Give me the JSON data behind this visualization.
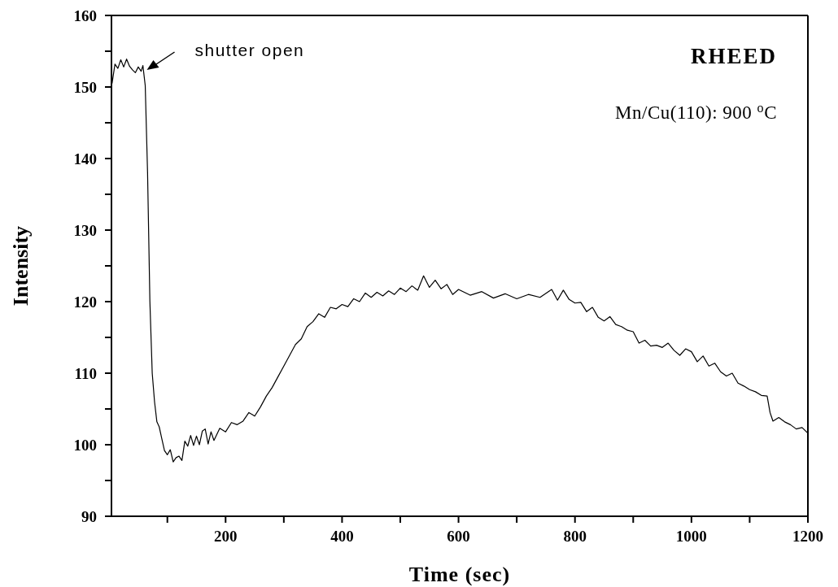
{
  "chart_data": {
    "type": "line",
    "xlabel": "Time (sec)",
    "ylabel": "Intensity",
    "annotations": [
      {
        "text": "shutter open",
        "x": 62,
        "y": 152.5
      },
      "RHEED",
      "Mn/Cu(110): 900 $^{o}$C"
    ],
    "x": [
      5,
      10,
      15,
      20,
      25,
      30,
      35,
      40,
      45,
      50,
      55,
      58,
      62,
      66,
      70,
      74,
      78,
      82,
      86,
      90,
      95,
      100,
      105,
      110,
      115,
      120,
      125,
      130,
      135,
      140,
      145,
      150,
      155,
      160,
      165,
      170,
      175,
      180,
      190,
      200,
      210,
      220,
      230,
      240,
      250,
      260,
      270,
      280,
      290,
      300,
      310,
      320,
      330,
      340,
      350,
      360,
      370,
      380,
      390,
      400,
      410,
      420,
      430,
      440,
      450,
      460,
      470,
      480,
      490,
      500,
      510,
      520,
      530,
      540,
      550,
      560,
      570,
      580,
      590,
      600,
      620,
      640,
      660,
      680,
      700,
      720,
      740,
      760,
      770,
      780,
      790,
      800,
      810,
      820,
      830,
      840,
      850,
      860,
      870,
      880,
      890,
      900,
      910,
      920,
      930,
      940,
      950,
      960,
      970,
      980,
      990,
      1000,
      1010,
      1020,
      1030,
      1040,
      1050,
      1060,
      1070,
      1080,
      1090,
      1100,
      1110,
      1120,
      1130,
      1135,
      1140,
      1150,
      1160,
      1170,
      1180,
      1190,
      1200
    ],
    "series": [
      {
        "color": "#000000",
        "values": [
          150.5,
          153.2,
          152.6,
          153.8,
          152.8,
          153.9,
          152.9,
          152.4,
          152.0,
          152.8,
          152.2,
          153.0,
          150.2,
          138,
          120,
          110,
          106,
          103.2,
          102.5,
          101,
          99.2,
          98.6,
          99.3,
          97.6,
          98.2,
          98.4,
          97.8,
          100.5,
          99.8,
          101.3,
          99.9,
          101.2,
          100.0,
          101.9,
          102.2,
          100.1,
          101.8,
          100.6,
          102.3,
          101.8,
          103.1,
          102.8,
          103.3,
          104.5,
          104.0,
          105.3,
          106.8,
          108.0,
          109.5,
          111.0,
          112.5,
          114.0,
          114.8,
          116.5,
          117.2,
          118.3,
          117.8,
          119.2,
          119.0,
          119.6,
          119.3,
          120.4,
          120.0,
          121.2,
          120.6,
          121.3,
          120.8,
          121.5,
          121.0,
          121.9,
          121.4,
          122.2,
          121.6,
          123.6,
          122.0,
          123.0,
          121.8,
          122.4,
          121.0,
          121.7,
          120.9,
          121.4,
          120.5,
          121.1,
          120.4,
          121.0,
          120.6,
          121.7,
          120.2,
          121.6,
          120.3,
          119.8,
          119.9,
          118.6,
          119.2,
          117.8,
          117.3,
          117.9,
          116.8,
          116.5,
          116.0,
          115.8,
          114.2,
          114.6,
          113.8,
          113.9,
          113.6,
          114.2,
          113.2,
          112.5,
          113.4,
          113.0,
          111.6,
          112.4,
          111.0,
          111.4,
          110.2,
          109.6,
          110.0,
          108.6,
          108.2,
          107.7,
          107.4,
          106.9,
          106.8,
          104.5,
          103.3,
          103.8,
          103.2,
          102.8,
          102.2,
          102.4,
          101.6
        ]
      }
    ],
    "xlim": [
      4,
      1200
    ],
    "xticks": [
      {
        "value": 100,
        "label": null
      },
      200,
      {
        "value": 300,
        "label": null
      },
      400,
      {
        "value": 500,
        "label": null
      },
      600,
      {
        "value": 700,
        "label": null
      },
      800,
      {
        "value": 900,
        "label": null
      },
      1000,
      {
        "value": 1100,
        "label": null
      },
      1200
    ],
    "ylim": [
      90,
      160
    ],
    "yticks": [
      90,
      {
        "value": 95,
        "label": null
      },
      100,
      {
        "value": 105,
        "label": null
      },
      110,
      {
        "value": 115,
        "label": null
      },
      120,
      {
        "value": 125,
        "label": null
      },
      130,
      {
        "value": 135,
        "label": null
      },
      140,
      {
        "value": 145,
        "label": null
      },
      150,
      {
        "value": 155,
        "label": null
      },
      160
    ],
    "marker": "none",
    "line_style": "solid"
  }
}
